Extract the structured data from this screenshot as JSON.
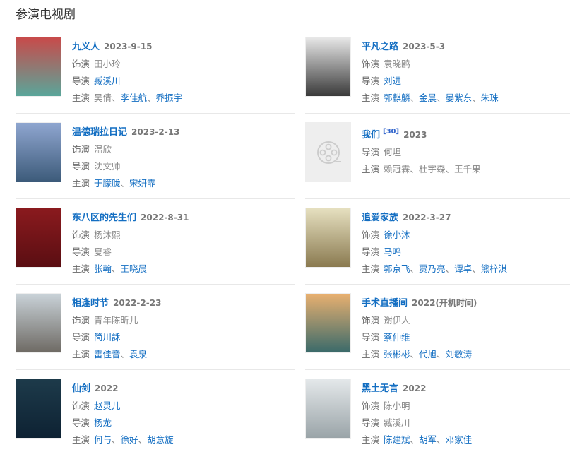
{
  "heading": "参演电视剧",
  "labels": {
    "role": "饰演",
    "director": "导演",
    "cast": "主演"
  },
  "columns": [
    [
      {
        "title": "九义人",
        "date": "2023-9-15",
        "poster": [
          "#c84a4a",
          "#5aa69a"
        ],
        "role": [
          {
            "n": "田小玲",
            "link": false
          }
        ],
        "director": [
          {
            "n": "臧溪川",
            "link": true
          }
        ],
        "cast": [
          {
            "n": "吴倩",
            "link": false
          },
          {
            "n": "李佳航",
            "link": true
          },
          {
            "n": "乔振宇",
            "link": true
          }
        ]
      },
      {
        "title": "温德瑞拉日记",
        "date": "2023-2-13",
        "poster": [
          "#8fa6d0",
          "#3d5b7a"
        ],
        "role": [
          {
            "n": "温欣",
            "link": false
          }
        ],
        "director": [
          {
            "n": "沈文帅",
            "link": false
          }
        ],
        "cast": [
          {
            "n": "于朦胧",
            "link": true
          },
          {
            "n": "宋妍霏",
            "link": true
          }
        ]
      },
      {
        "title": "东八区的先生们",
        "date": "2022-8-31",
        "poster": [
          "#8a1a1e",
          "#5a0e12"
        ],
        "role": [
          {
            "n": "杨沐熙",
            "link": false
          }
        ],
        "director": [
          {
            "n": "夏睿",
            "link": false
          }
        ],
        "cast": [
          {
            "n": "张翰",
            "link": true
          },
          {
            "n": "王晓晨",
            "link": true
          }
        ]
      },
      {
        "title": "相逢时节",
        "date": "2022-2-23",
        "poster": [
          "#c9d2d8",
          "#6e6a64"
        ],
        "role": [
          {
            "n": "青年陈昕儿",
            "link": false
          }
        ],
        "director": [
          {
            "n": "简川訸",
            "link": true
          }
        ],
        "cast": [
          {
            "n": "雷佳音",
            "link": true
          },
          {
            "n": "袁泉",
            "link": true
          }
        ]
      },
      {
        "title": "仙剑",
        "date": "2022",
        "poster": [
          "#1d3a4a",
          "#0e2233"
        ],
        "role": [
          {
            "n": "赵灵儿",
            "link": true
          }
        ],
        "director": [
          {
            "n": "杨龙",
            "link": true
          }
        ],
        "cast": [
          {
            "n": "何与",
            "link": true
          },
          {
            "n": "徐好",
            "link": true
          },
          {
            "n": "胡意旋",
            "link": true
          }
        ]
      }
    ],
    [
      {
        "title": "平凡之路",
        "date": "2023-5-3",
        "poster": [
          "#e8e8e8",
          "#3a3a3a"
        ],
        "role": [
          {
            "n": "袁晓鸥",
            "link": false
          }
        ],
        "director": [
          {
            "n": "刘进",
            "link": true
          }
        ],
        "cast": [
          {
            "n": "郭麒麟",
            "link": true
          },
          {
            "n": "金晨",
            "link": true
          },
          {
            "n": "晏紫东",
            "link": true
          },
          {
            "n": "朱珠",
            "link": true
          }
        ]
      },
      {
        "title": "我们",
        "ref": "[30]",
        "date": "2023",
        "placeholder": true,
        "director": [
          {
            "n": "何坦",
            "link": false
          }
        ],
        "cast": [
          {
            "n": "赖冠霖",
            "link": false
          },
          {
            "n": "杜宇森",
            "link": false
          },
          {
            "n": "王千果",
            "link": false
          }
        ]
      },
      {
        "title": "追爱家族",
        "date": "2022-3-27",
        "poster": [
          "#e6e0c0",
          "#8a7a50"
        ],
        "role": [
          {
            "n": "徐小沐",
            "link": true
          }
        ],
        "director": [
          {
            "n": "马鸣",
            "link": true
          }
        ],
        "cast": [
          {
            "n": "郭京飞",
            "link": true
          },
          {
            "n": "贾乃亮",
            "link": true
          },
          {
            "n": "谭卓",
            "link": true
          },
          {
            "n": "熊梓淇",
            "link": true
          }
        ]
      },
      {
        "title": "手术直播间",
        "date": "2022(开机时间)",
        "poster": [
          "#e8b070",
          "#3a6a6a"
        ],
        "role": [
          {
            "n": "谢伊人",
            "link": false
          }
        ],
        "director": [
          {
            "n": "蔡仲维",
            "link": true
          }
        ],
        "cast": [
          {
            "n": "张彬彬",
            "link": true
          },
          {
            "n": "代旭",
            "link": true
          },
          {
            "n": "刘敏涛",
            "link": true
          }
        ]
      },
      {
        "title": "黑土无言",
        "date": "2022",
        "poster": [
          "#e4e8ea",
          "#9aa4a8"
        ],
        "role": [
          {
            "n": "陈小明",
            "link": false
          }
        ],
        "director": [
          {
            "n": "臧溪川",
            "link": false
          }
        ],
        "cast": [
          {
            "n": "陈建斌",
            "link": true
          },
          {
            "n": "胡军",
            "link": true
          },
          {
            "n": "邓家佳",
            "link": true
          }
        ]
      }
    ]
  ]
}
